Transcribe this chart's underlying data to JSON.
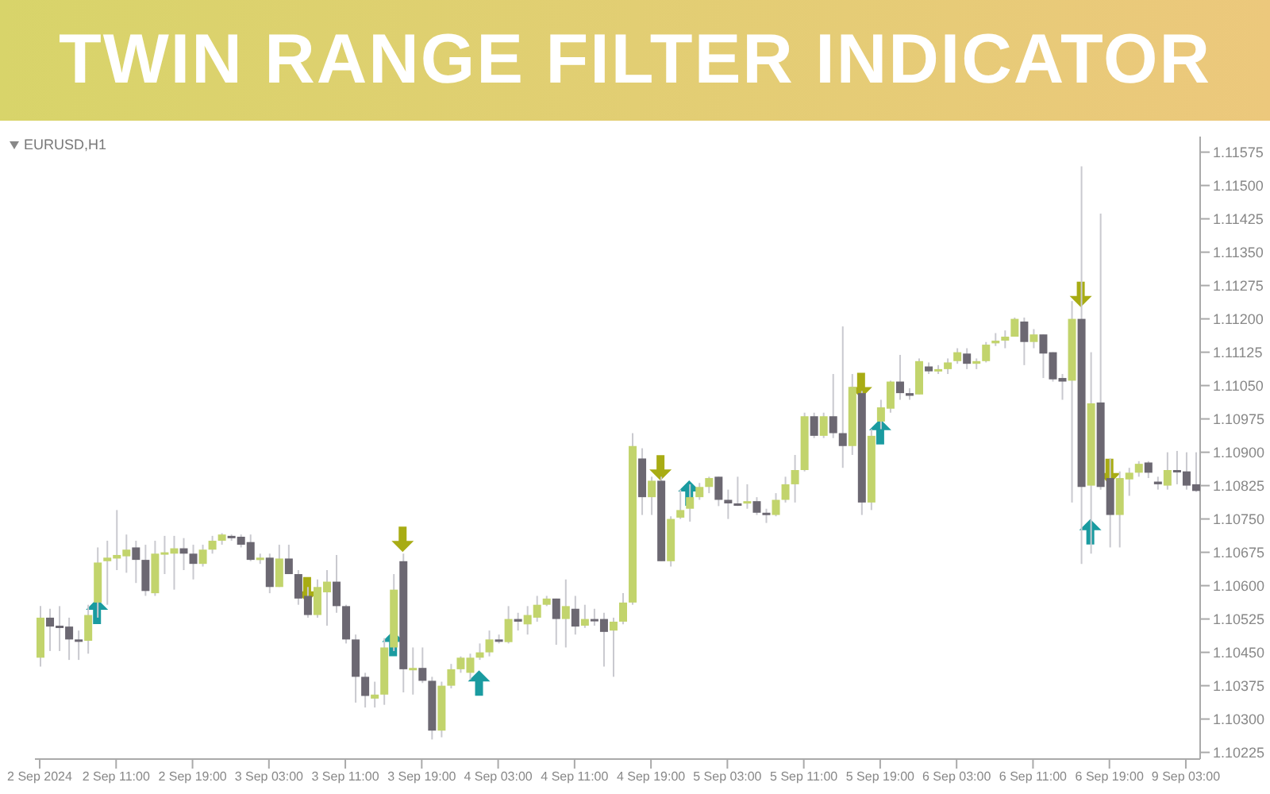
{
  "chart_data": {
    "type": "candlestick",
    "title": "TWIN RANGE FILTER INDICATOR",
    "annotations": [
      "EURUSD,H1"
    ],
    "categories": [
      "2 Sep 2024",
      null,
      null,
      null,
      null,
      null,
      null,
      null,
      "2 Sep 11:00",
      null,
      null,
      null,
      null,
      null,
      null,
      null,
      "2 Sep 19:00",
      null,
      null,
      null,
      null,
      null,
      null,
      null,
      "3 Sep 03:00",
      null,
      null,
      null,
      null,
      null,
      null,
      null,
      "3 Sep 11:00",
      null,
      null,
      null,
      null,
      null,
      null,
      null,
      "3 Sep 19:00",
      null,
      null,
      null,
      null,
      null,
      null,
      null,
      "4 Sep 03:00",
      null,
      null,
      null,
      null,
      null,
      null,
      null,
      "4 Sep 11:00",
      null,
      null,
      null,
      null,
      null,
      null,
      null,
      "4 Sep 19:00",
      null,
      null,
      null,
      null,
      null,
      null,
      null,
      "5 Sep 03:00",
      null,
      null,
      null,
      null,
      null,
      null,
      null,
      "5 Sep 11:00",
      null,
      null,
      null,
      null,
      null,
      null,
      null,
      "5 Sep 19:00",
      null,
      null,
      null,
      null,
      null,
      null,
      null,
      "6 Sep 03:00",
      null,
      null,
      null,
      null,
      null,
      null,
      null,
      "6 Sep 11:00",
      null,
      null,
      null,
      null,
      null,
      null,
      null,
      "6 Sep 19:00",
      null,
      null,
      null,
      null,
      null,
      null,
      null,
      "9 Sep 03:00",
      null
    ],
    "ohlc": [
      [
        1.10438,
        1.10554,
        1.10418,
        1.10528
      ],
      [
        1.10528,
        1.10548,
        1.10453,
        1.10508
      ],
      [
        1.1051,
        1.10554,
        1.10453,
        1.10508
      ],
      [
        1.10508,
        1.10528,
        1.10433,
        1.10479
      ],
      [
        1.10479,
        1.10499,
        1.10433,
        1.10476
      ],
      [
        1.10476,
        1.10557,
        1.10447,
        1.10534
      ],
      [
        1.10562,
        1.10686,
        1.10528,
        1.10652
      ],
      [
        1.10655,
        1.10701,
        1.10557,
        1.10663
      ],
      [
        1.10661,
        1.1077,
        1.10635,
        1.10669
      ],
      [
        1.10666,
        1.10715,
        1.10629,
        1.10681
      ],
      [
        1.10686,
        1.10701,
        1.10606,
        1.10658
      ],
      [
        1.10658,
        1.10692,
        1.10577,
        1.10588
      ],
      [
        1.10583,
        1.10701,
        1.10577,
        1.10672
      ],
      [
        1.10672,
        1.10712,
        1.10626,
        1.10675
      ],
      [
        1.10672,
        1.10712,
        1.10591,
        1.10684
      ],
      [
        1.10684,
        1.10707,
        1.10635,
        1.10672
      ],
      [
        1.10672,
        1.10692,
        1.10614,
        1.10649
      ],
      [
        1.10649,
        1.10692,
        1.10643,
        1.10681
      ],
      [
        1.10681,
        1.10712,
        1.10672,
        1.10701
      ],
      [
        1.10701,
        1.10718,
        1.10692,
        1.10715
      ],
      [
        1.10712,
        1.10715,
        1.10701,
        1.1071
      ],
      [
        1.1071,
        1.10715,
        1.10686,
        1.10692
      ],
      [
        1.10698,
        1.10715,
        1.10655,
        1.10658
      ],
      [
        1.10658,
        1.10672,
        1.10649,
        1.10663
      ],
      [
        1.10663,
        1.10672,
        1.10583,
        1.10597
      ],
      [
        1.10597,
        1.10692,
        1.10597,
        1.10661
      ],
      [
        1.10661,
        1.10692,
        1.10626,
        1.10626
      ],
      [
        1.10626,
        1.10635,
        1.10557,
        1.10571
      ],
      [
        1.10577,
        1.10597,
        1.10528,
        1.10534
      ],
      [
        1.10534,
        1.10614,
        1.10528,
        1.10597
      ],
      [
        1.10585,
        1.10635,
        1.1051,
        1.10609
      ],
      [
        1.10609,
        1.10669,
        1.10539,
        1.10554
      ],
      [
        1.10554,
        1.10557,
        1.1047,
        1.10479
      ],
      [
        1.10479,
        1.1049,
        1.10337,
        1.10395
      ],
      [
        1.10395,
        1.10404,
        1.10326,
        1.10352
      ],
      [
        1.10346,
        1.10384,
        1.10326,
        1.10355
      ],
      [
        1.10355,
        1.10482,
        1.10332,
        1.10461
      ],
      [
        1.10461,
        1.10626,
        1.10453,
        1.10591
      ],
      [
        1.10655,
        1.10672,
        1.1036,
        1.10412
      ],
      [
        1.10412,
        1.10461,
        1.10355,
        1.10415
      ],
      [
        1.10415,
        1.10461,
        1.10381,
        1.10386
      ],
      [
        1.10386,
        1.10395,
        1.10254,
        1.10274
      ],
      [
        1.10274,
        1.10384,
        1.10259,
        1.10375
      ],
      [
        1.10375,
        1.10424,
        1.10369,
        1.10412
      ],
      [
        1.10412,
        1.10441,
        1.10404,
        1.10438
      ],
      [
        1.10404,
        1.10447,
        1.10389,
        1.10438
      ],
      [
        1.10438,
        1.1047,
        1.10433,
        1.1045
      ],
      [
        1.1045,
        1.10499,
        1.10441,
        1.10479
      ],
      [
        1.10479,
        1.1049,
        1.1047,
        1.10476
      ],
      [
        1.10473,
        1.10554,
        1.1047,
        1.10525
      ],
      [
        1.10525,
        1.10539,
        1.10499,
        1.10519
      ],
      [
        1.10513,
        1.10554,
        1.1049,
        1.10534
      ],
      [
        1.10528,
        1.10577,
        1.10519,
        1.10557
      ],
      [
        1.10557,
        1.10577,
        1.10554,
        1.10571
      ],
      [
        1.10571,
        1.10571,
        1.10467,
        1.10525
      ],
      [
        1.10525,
        1.10614,
        1.10461,
        1.10554
      ],
      [
        1.10548,
        1.10577,
        1.1049,
        1.10508
      ],
      [
        1.1051,
        1.10557,
        1.10505,
        1.10525
      ],
      [
        1.10525,
        1.10548,
        1.1051,
        1.10523
      ],
      [
        1.10525,
        1.10539,
        1.10418,
        1.10496
      ],
      [
        1.10499,
        1.10528,
        1.10395,
        1.10519
      ],
      [
        1.10519,
        1.10583,
        1.10513,
        1.10562
      ],
      [
        1.10562,
        1.10943,
        1.10557,
        1.10914
      ],
      [
        1.10886,
        1.10909,
        1.10759,
        1.10799
      ],
      [
        1.10799,
        1.10845,
        1.10759,
        1.10836
      ],
      [
        1.10836,
        1.10845,
        1.10655,
        1.10655
      ],
      [
        1.10655,
        1.10756,
        1.10643,
        1.1075
      ],
      [
        1.10753,
        1.10816,
        1.1075,
        1.1077
      ],
      [
        1.10773,
        1.10828,
        1.10744,
        1.10799
      ],
      [
        1.10799,
        1.10831,
        1.10793,
        1.10822
      ],
      [
        1.10822,
        1.10845,
        1.10808,
        1.10842
      ],
      [
        1.10845,
        1.10845,
        1.10779,
        1.10793
      ],
      [
        1.10793,
        1.10816,
        1.1075,
        1.10785
      ],
      [
        1.10785,
        1.10845,
        1.10779,
        1.10783
      ],
      [
        1.10785,
        1.10828,
        1.10773,
        1.1079
      ],
      [
        1.1079,
        1.10799,
        1.10759,
        1.10764
      ],
      [
        1.10764,
        1.10773,
        1.10741,
        1.10763
      ],
      [
        1.10759,
        1.10808,
        1.10756,
        1.10793
      ],
      [
        1.10793,
        1.10845,
        1.10787,
        1.10828
      ],
      [
        1.10828,
        1.10894,
        1.10787,
        1.1086
      ],
      [
        1.1086,
        1.10989,
        1.10857,
        1.10981
      ],
      [
        1.10981,
        1.10989,
        1.10932,
        1.10937
      ],
      [
        1.10937,
        1.10989,
        1.10932,
        1.10981
      ],
      [
        1.10981,
        1.11076,
        1.10932,
        1.10943
      ],
      [
        1.10943,
        1.11183,
        1.10865,
        1.10914
      ],
      [
        1.10914,
        1.11076,
        1.10894,
        1.11047
      ],
      [
        1.11033,
        1.11038,
        1.10759,
        1.10787
      ],
      [
        1.10787,
        1.10952,
        1.1077,
        1.10937
      ],
      [
        1.10969,
        1.11018,
        1.10952,
        1.11001
      ],
      [
        1.10998,
        1.11061,
        1.10989,
        1.11059
      ],
      [
        1.11059,
        1.11119,
        1.11018,
        1.11033
      ],
      [
        1.11033,
        1.11044,
        1.11018,
        1.11027
      ],
      [
        1.1103,
        1.11111,
        1.1103,
        1.11105
      ],
      [
        1.11093,
        1.11102,
        1.11076,
        1.11082
      ],
      [
        1.11082,
        1.11096,
        1.11076,
        1.11087
      ],
      [
        1.11087,
        1.11111,
        1.11076,
        1.11102
      ],
      [
        1.11105,
        1.11134,
        1.11099,
        1.11125
      ],
      [
        1.11122,
        1.11134,
        1.11087,
        1.11099
      ],
      [
        1.11099,
        1.11111,
        1.11087,
        1.11105
      ],
      [
        1.11105,
        1.11148,
        1.11102,
        1.11142
      ],
      [
        1.11145,
        1.11168,
        1.11139,
        1.11151
      ],
      [
        1.11151,
        1.11174,
        1.11134,
        1.1116
      ],
      [
        1.1116,
        1.11203,
        1.1116,
        1.112
      ],
      [
        1.11194,
        1.11203,
        1.11096,
        1.11148
      ],
      [
        1.11148,
        1.11177,
        1.11134,
        1.11165
      ],
      [
        1.11165,
        1.11165,
        1.11067,
        1.11122
      ],
      [
        1.11125,
        1.11125,
        1.11059,
        1.11064
      ],
      [
        1.11067,
        1.11076,
        1.11018,
        1.11059
      ],
      [
        1.11061,
        1.1124,
        1.10787,
        1.112
      ],
      [
        1.112,
        1.11543,
        1.10649,
        1.10822
      ],
      [
        1.10825,
        1.11125,
        1.10672,
        1.1101
      ],
      [
        1.11012,
        1.11437,
        1.10816,
        1.10822
      ],
      [
        1.10842,
        1.10886,
        1.10686,
        1.10759
      ],
      [
        1.10759,
        1.10857,
        1.10686,
        1.10842
      ],
      [
        1.10839,
        1.10865,
        1.10802,
        1.10854
      ],
      [
        1.10854,
        1.1088,
        1.10845,
        1.10874
      ],
      [
        1.10877,
        1.1088,
        1.10842,
        1.10854
      ],
      [
        1.10834,
        1.10845,
        1.10816,
        1.10828
      ],
      [
        1.10825,
        1.109,
        1.10816,
        1.1086
      ],
      [
        1.1086,
        1.10903,
        1.10828,
        1.10857
      ],
      [
        1.10857,
        1.109,
        1.10816,
        1.10825
      ],
      [
        1.10828,
        1.109,
        1.10811,
        1.10813
      ]
    ],
    "colors": [
      "#c2d46c",
      "#6c6872",
      "#6c6872",
      "#6c6872",
      "#6c6872",
      "#c2d46c",
      "#c2d46c",
      "#c2d46c",
      "#c2d46c",
      "#c2d46c",
      "#6c6872",
      "#6c6872",
      "#c2d46c",
      "#c2d46c",
      "#c2d46c",
      "#6c6872",
      "#6c6872",
      "#c2d46c",
      "#c2d46c",
      "#c2d46c",
      "#6c6872",
      "#6c6872",
      "#6c6872",
      "#c2d46c",
      "#6c6872",
      "#c2d46c",
      "#6c6872",
      "#6c6872",
      "#6c6872",
      "#c2d46c",
      "#c2d46c",
      "#6c6872",
      "#6c6872",
      "#6c6872",
      "#6c6872",
      "#c2d46c",
      "#c2d46c",
      "#c2d46c",
      "#6c6872",
      "#c2d46c",
      "#6c6872",
      "#6c6872",
      "#c2d46c",
      "#c2d46c",
      "#c2d46c",
      "#c2d46c",
      "#c2d46c",
      "#c2d46c",
      "#6c6872",
      "#c2d46c",
      "#6c6872",
      "#c2d46c",
      "#c2d46c",
      "#c2d46c",
      "#6c6872",
      "#c2d46c",
      "#6c6872",
      "#c2d46c",
      "#6c6872",
      "#6c6872",
      "#c2d46c",
      "#c2d46c",
      "#c2d46c",
      "#6c6872",
      "#c2d46c",
      "#6c6872",
      "#c2d46c",
      "#c2d46c",
      "#c2d46c",
      "#c2d46c",
      "#c2d46c",
      "#6c6872",
      "#6c6872",
      "#6c6872",
      "#c2d46c",
      "#6c6872",
      "#6c6872",
      "#c2d46c",
      "#c2d46c",
      "#c2d46c",
      "#c2d46c",
      "#6c6872",
      "#c2d46c",
      "#6c6872",
      "#6c6872",
      "#c2d46c",
      "#6c6872",
      "#c2d46c",
      "#c2d46c",
      "#c2d46c",
      "#6c6872",
      "#6c6872",
      "#c2d46c",
      "#6c6872",
      "#c2d46c",
      "#c2d46c",
      "#c2d46c",
      "#6c6872",
      "#c2d46c",
      "#c2d46c",
      "#c2d46c",
      "#c2d46c",
      "#c2d46c",
      "#6c6872",
      "#c2d46c",
      "#6c6872",
      "#6c6872",
      "#6c6872",
      "#c2d46c",
      "#6c6872",
      "#c2d46c",
      "#6c6872",
      "#6c6872",
      "#c2d46c",
      "#c2d46c",
      "#c2d46c",
      "#6c6872",
      "#6c6872",
      "#c2d46c",
      "#6c6872",
      "#6c6872",
      "#6c6872"
    ],
    "ylim": [
      1.1021,
      1.1161
    ],
    "yticks": [
      1.10225,
      {
        "value": 1.103,
        "label": "1.10300"
      },
      1.10375,
      {
        "value": 1.1045,
        "label": "1.10450"
      },
      1.10525,
      {
        "value": 1.106,
        "label": "1.10600"
      },
      1.10675,
      {
        "value": 1.1075,
        "label": "1.10750"
      },
      1.10825,
      {
        "value": 1.109,
        "label": "1.10900"
      },
      1.10975,
      {
        "value": 1.1105,
        "label": "1.11050"
      },
      1.11125,
      {
        "value": 1.112,
        "label": "1.11200"
      },
      1.11275,
      {
        "value": 1.1135,
        "label": "1.11350"
      },
      1.11425,
      {
        "value": 1.115,
        "label": "1.11500"
      },
      1.11575
    ],
    "series": [
      {
        "type": "scatter",
        "marker": "triangle",
        "color": "#1a9ba0",
        "values": [
          null,
          null,
          null,
          null,
          null,
          null,
          1.10542,
          null,
          null,
          null,
          null,
          null,
          null,
          null,
          null,
          null,
          null,
          null,
          null,
          null,
          null,
          null,
          null,
          null,
          null,
          null,
          null,
          null,
          null,
          null,
          null,
          null,
          null,
          null,
          null,
          null,
          null,
          1.1047,
          null,
          null,
          null,
          null,
          null,
          null,
          null,
          null,
          1.10381,
          null,
          null,
          null,
          null,
          null,
          null,
          null,
          null,
          null,
          null,
          null,
          null,
          null,
          null,
          null,
          null,
          null,
          null,
          null,
          null,
          null,
          1.10808,
          null,
          null,
          null,
          null,
          null,
          null,
          null,
          null,
          null,
          null,
          null,
          null,
          null,
          null,
          null,
          null,
          null,
          null,
          null,
          1.10946,
          null,
          null,
          null,
          null,
          null,
          null,
          null,
          null,
          null,
          null,
          null,
          null,
          null,
          null,
          null,
          null,
          null,
          null,
          null,
          null,
          null,
          1.10721,
          null,
          null,
          null,
          null,
          null,
          null,
          null,
          null,
          null,
          null,
          null
        ]
      },
      {
        "type": "scatter",
        "marker": "triangle",
        "color": "#a8ac14",
        "values": [
          null,
          null,
          null,
          null,
          null,
          null,
          null,
          null,
          null,
          null,
          null,
          null,
          null,
          null,
          null,
          null,
          null,
          null,
          null,
          null,
          null,
          null,
          null,
          null,
          null,
          null,
          null,
          null,
          1.10591,
          null,
          null,
          null,
          null,
          null,
          null,
          null,
          null,
          null,
          1.10704,
          null,
          null,
          null,
          null,
          null,
          null,
          null,
          null,
          null,
          null,
          null,
          null,
          null,
          null,
          null,
          null,
          null,
          null,
          null,
          null,
          null,
          null,
          null,
          null,
          null,
          null,
          1.10865,
          null,
          null,
          null,
          null,
          null,
          null,
          null,
          null,
          null,
          null,
          null,
          null,
          null,
          null,
          null,
          null,
          null,
          null,
          null,
          null,
          1.1105,
          null,
          null,
          null,
          null,
          null,
          null,
          null,
          null,
          null,
          null,
          null,
          null,
          null,
          null,
          null,
          null,
          null,
          null,
          null,
          null,
          null,
          null,
          1.11255,
          null,
          null,
          1.10857,
          null,
          null,
          null,
          null,
          null,
          null,
          null,
          null,
          null
        ]
      }
    ]
  }
}
